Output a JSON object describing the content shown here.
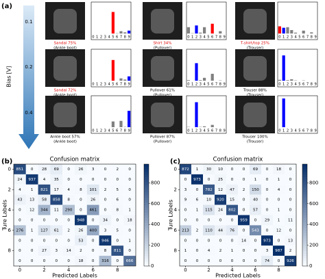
{
  "figure": {
    "panel_labels": [
      "(a)",
      "(b)",
      "(c)"
    ],
    "bias_label": "Bias [V]",
    "bias_ticks": [
      0.1,
      0.2,
      0.4
    ]
  },
  "chart_data": [
    {
      "type": "bar",
      "caption": "Sandal 75%",
      "subcaption": "(Ankle boot)",
      "caption_color": "#e00000",
      "categories": [
        "0",
        "1",
        "2",
        "3",
        "4",
        "5",
        "6",
        "7",
        "8",
        "9"
      ],
      "values": [
        0,
        0,
        0,
        0,
        0,
        75,
        1,
        8,
        4,
        10
      ],
      "colors": [
        "#808080",
        "#808080",
        "#808080",
        "#808080",
        "#808080",
        "#ff0000",
        "#808080",
        "#808080",
        "#808080",
        "#0000ff"
      ],
      "ylim": [
        0,
        100
      ]
    },
    {
      "type": "bar",
      "caption": "Shirt 34%",
      "subcaption": "(Pullover)",
      "caption_color": "#e00000",
      "categories": [
        "0",
        "1",
        "2",
        "3",
        "4",
        "5",
        "6",
        "7",
        "8",
        "9"
      ],
      "values": [
        22,
        1,
        28,
        3,
        22,
        0,
        34,
        0,
        8,
        0
      ],
      "colors": [
        "#808080",
        "#808080",
        "#0000ff",
        "#808080",
        "#808080",
        "#808080",
        "#ff0000",
        "#808080",
        "#808080",
        "#808080"
      ],
      "ylim": [
        0,
        100
      ]
    },
    {
      "type": "bar",
      "caption": "T-shirt/top 25%",
      "subcaption": "(Trouser)",
      "caption_color": "#e00000",
      "categories": [
        "0",
        "1",
        "2",
        "3",
        "4",
        "5",
        "6",
        "7",
        "8",
        "9"
      ],
      "values": [
        25,
        20,
        22,
        12,
        3,
        0,
        10,
        0,
        4,
        0
      ],
      "colors": [
        "#ff0000",
        "#0000ff",
        "#808080",
        "#808080",
        "#808080",
        "#808080",
        "#808080",
        "#808080",
        "#808080",
        "#808080"
      ],
      "ylim": [
        0,
        100
      ]
    },
    {
      "type": "bar",
      "caption": "Sandal 72%",
      "subcaption": "(Ankle boot)",
      "caption_color": "#e00000",
      "categories": [
        "0",
        "1",
        "2",
        "3",
        "4",
        "5",
        "6",
        "7",
        "8",
        "9"
      ],
      "values": [
        0,
        0,
        0,
        0,
        0,
        72,
        0,
        8,
        4,
        15
      ],
      "colors": [
        "#808080",
        "#808080",
        "#808080",
        "#808080",
        "#808080",
        "#ff0000",
        "#808080",
        "#808080",
        "#808080",
        "#0000ff"
      ],
      "ylim": [
        0,
        100
      ]
    },
    {
      "type": "bar",
      "caption": "Pullover 61%",
      "subcaption": "(Pullover)",
      "caption_color": "#000000",
      "categories": [
        "0",
        "1",
        "2",
        "3",
        "4",
        "5",
        "6",
        "7",
        "8",
        "9"
      ],
      "values": [
        2,
        0,
        61,
        2,
        10,
        0,
        24,
        0,
        1,
        0
      ],
      "colors": [
        "#808080",
        "#808080",
        "#0000ff",
        "#808080",
        "#808080",
        "#808080",
        "#808080",
        "#808080",
        "#808080",
        "#808080"
      ],
      "ylim": [
        0,
        100
      ]
    },
    {
      "type": "bar",
      "caption": "Trouser 88%",
      "subcaption": "(Trouser)",
      "caption_color": "#000000",
      "categories": [
        "0",
        "1",
        "2",
        "3",
        "4",
        "5",
        "6",
        "7",
        "8",
        "9"
      ],
      "values": [
        3,
        88,
        2,
        5,
        1,
        0,
        1,
        0,
        0,
        0
      ],
      "colors": [
        "#808080",
        "#0000ff",
        "#808080",
        "#808080",
        "#808080",
        "#808080",
        "#808080",
        "#808080",
        "#808080",
        "#808080"
      ],
      "ylim": [
        0,
        100
      ]
    },
    {
      "type": "bar",
      "caption": "Ankle boot 57%",
      "subcaption": "(Ankle boot)",
      "caption_color": "#000000",
      "categories": [
        "0",
        "1",
        "2",
        "3",
        "4",
        "5",
        "6",
        "7",
        "8",
        "9"
      ],
      "values": [
        0,
        0,
        0,
        0,
        0,
        20,
        0,
        22,
        1,
        57
      ],
      "colors": [
        "#808080",
        "#808080",
        "#808080",
        "#808080",
        "#808080",
        "#808080",
        "#808080",
        "#808080",
        "#808080",
        "#0000ff"
      ],
      "ylim": [
        0,
        100
      ]
    },
    {
      "type": "bar",
      "caption": "Pullover 87%",
      "subcaption": "(Pullover)",
      "caption_color": "#000000",
      "categories": [
        "0",
        "1",
        "2",
        "3",
        "4",
        "5",
        "6",
        "7",
        "8",
        "9"
      ],
      "values": [
        1,
        0,
        87,
        1,
        3,
        0,
        8,
        0,
        0,
        0
      ],
      "colors": [
        "#808080",
        "#808080",
        "#0000ff",
        "#808080",
        "#808080",
        "#808080",
        "#808080",
        "#808080",
        "#808080",
        "#808080"
      ],
      "ylim": [
        0,
        100
      ]
    },
    {
      "type": "bar",
      "caption": "Trouser 100%",
      "subcaption": "(Trouser)",
      "caption_color": "#000000",
      "categories": [
        "0",
        "1",
        "2",
        "3",
        "4",
        "5",
        "6",
        "7",
        "8",
        "9"
      ],
      "values": [
        0,
        100,
        0,
        0,
        0,
        0,
        0,
        0,
        0,
        0
      ],
      "colors": [
        "#808080",
        "#0000ff",
        "#808080",
        "#808080",
        "#808080",
        "#808080",
        "#808080",
        "#808080",
        "#808080",
        "#808080"
      ],
      "ylim": [
        0,
        100
      ]
    },
    {
      "type": "heatmap",
      "title": "Confusion matrix",
      "xlabel": "Predicted Labels",
      "ylabel": "Ture Labels",
      "xlim": [
        -0.5,
        9.5
      ],
      "ylim": [
        -0.5,
        9.5
      ],
      "xticks": [
        0,
        2,
        4,
        6,
        8
      ],
      "yticks": [
        0,
        2,
        4,
        6,
        8
      ],
      "clim": [
        0,
        980
      ],
      "colorbar_ticks": [
        0,
        200,
        400,
        600,
        800
      ],
      "colormap": [
        "#f7fbff",
        "#08306b"
      ],
      "values": [
        [
          851,
          0,
          28,
          69,
          0,
          26,
          3,
          0,
          2,
          0
        ],
        [
          24,
          937,
          4,
          35,
          0,
          0,
          0,
          0,
          0,
          0
        ],
        [
          4,
          1,
          821,
          17,
          4,
          8,
          101,
          2,
          5,
          0
        ],
        [
          43,
          13,
          58,
          858,
          8,
          0,
          26,
          0,
          6,
          0
        ],
        [
          0,
          12,
          344,
          11,
          290,
          0,
          461,
          0,
          8,
          1
        ],
        [
          0,
          0,
          0,
          0,
          0,
          948,
          0,
          34,
          0,
          18
        ],
        [
          276,
          1,
          127,
          61,
          2,
          26,
          400,
          3,
          5,
          0
        ],
        [
          0,
          0,
          0,
          0,
          0,
          53,
          0,
          946,
          0,
          1
        ],
        [
          0,
          0,
          27,
          3,
          14,
          2,
          0,
          8,
          811,
          0
        ],
        [
          0,
          0,
          0,
          0,
          0,
          18,
          0,
          316,
          0,
          666
        ]
      ]
    },
    {
      "type": "heatmap",
      "title": "Confusion matrix",
      "xlabel": "Predicted Labels",
      "ylabel": "Ture Labels",
      "xlim": [
        -0.5,
        9.5
      ],
      "ylim": [
        -0.5,
        9.5
      ],
      "xticks": [
        0,
        2,
        4,
        6,
        8
      ],
      "yticks": [
        0,
        2,
        4,
        6,
        8
      ],
      "clim": [
        0,
        980
      ],
      "colorbar_ticks": [
        0,
        200,
        400,
        600,
        800
      ],
      "colormap": [
        "#f7fbff",
        "#08306b"
      ],
      "values": [
        [
          872,
          1,
          30,
          10,
          0,
          0,
          69,
          0,
          18,
          0
        ],
        [
          0,
          973,
          0,
          25,
          0,
          0,
          1,
          0,
          1,
          0
        ],
        [
          3,
          0,
          782,
          12,
          47,
          2,
          150,
          0,
          4,
          0
        ],
        [
          9,
          6,
          10,
          920,
          15,
          0,
          40,
          0,
          0,
          0
        ],
        [
          0,
          1,
          115,
          24,
          802,
          0,
          57,
          0,
          1,
          0
        ],
        [
          0,
          0,
          0,
          0,
          0,
          959,
          0,
          29,
          1,
          11
        ],
        [
          213,
          2,
          110,
          44,
          76,
          0,
          543,
          0,
          12,
          0
        ],
        [
          0,
          0,
          0,
          0,
          0,
          14,
          0,
          973,
          0,
          13
        ],
        [
          1,
          0,
          4,
          2,
          1,
          0,
          0,
          3,
          987,
          2
        ],
        [
          0,
          0,
          0,
          0,
          0,
          0,
          0,
          74,
          0,
          926
        ]
      ]
    }
  ]
}
